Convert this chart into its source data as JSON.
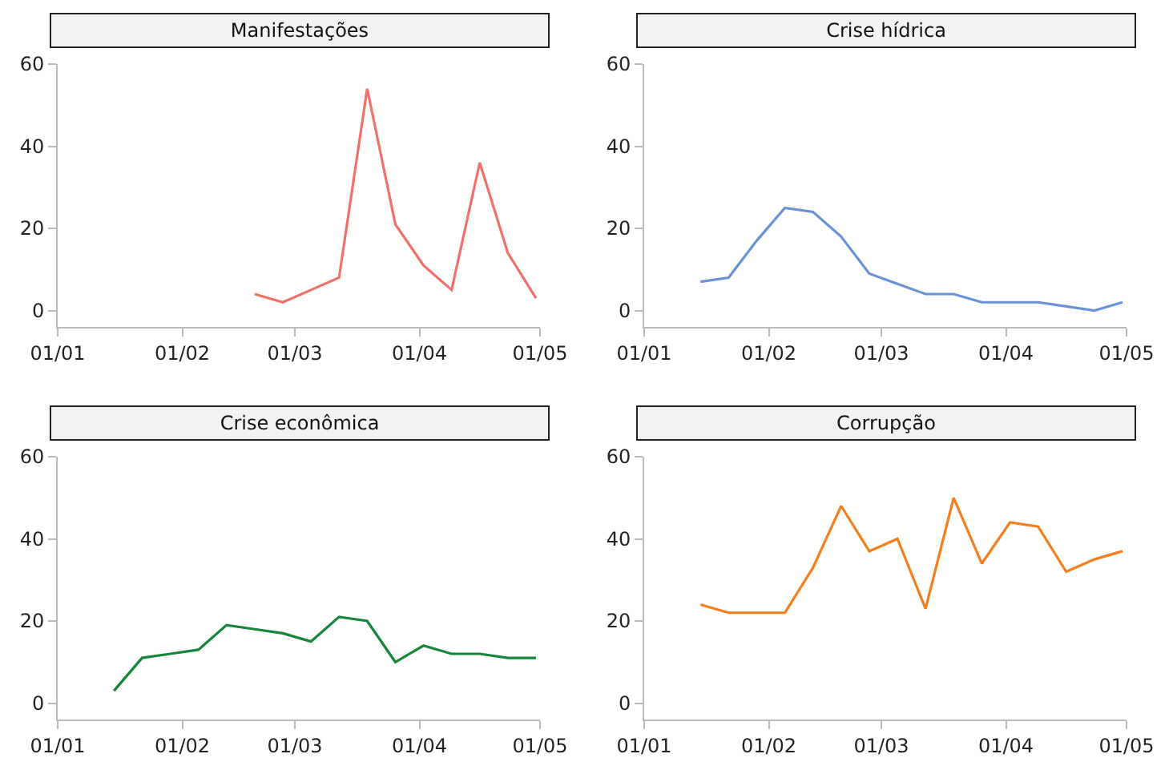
{
  "chart_data": [
    {
      "type": "line",
      "title": "Manifestações",
      "x": [
        "--02-19",
        "--02-26",
        "--03-05",
        "--03-12",
        "--03-19",
        "--03-26",
        "--04-02",
        "--04-09",
        "--04-16",
        "--04-23",
        "--04-30"
      ],
      "series": [
        {
          "color": "#f0716a",
          "values": [
            4,
            2,
            5,
            8,
            54,
            21,
            11,
            5,
            36,
            14,
            3
          ]
        }
      ],
      "xlim": [
        "--01-01",
        "--05-01"
      ],
      "xticks": [
        {
          "value": "--01-01",
          "label": "01/01"
        },
        {
          "value": "--02-01",
          "label": "01/02"
        },
        {
          "value": "--03-01",
          "label": "01/03"
        },
        {
          "value": "--04-01",
          "label": "01/04"
        },
        {
          "value": "--05-01",
          "label": "01/05"
        }
      ],
      "ylim": [
        -4,
        60
      ],
      "yticks": [
        0,
        20,
        40,
        60
      ]
    },
    {
      "type": "line",
      "title": "Crise hídrica",
      "x": [
        "--01-15",
        "--01-22",
        "--01-29",
        "--02-05",
        "--02-12",
        "--02-19",
        "--02-26",
        "--03-05",
        "--03-12",
        "--03-19",
        "--03-26",
        "--04-02",
        "--04-09",
        "--04-16",
        "--04-23",
        "--04-30"
      ],
      "series": [
        {
          "color": "#6a93d6",
          "values": [
            7,
            8,
            17,
            25,
            24,
            18,
            9,
            6.5,
            4,
            4,
            2,
            2,
            2,
            1,
            0,
            2
          ]
        }
      ],
      "xlim": [
        "--01-01",
        "--05-01"
      ],
      "xticks": [
        {
          "value": "--01-01",
          "label": "01/01"
        },
        {
          "value": "--02-01",
          "label": "01/02"
        },
        {
          "value": "--03-01",
          "label": "01/03"
        },
        {
          "value": "--04-01",
          "label": "01/04"
        },
        {
          "value": "--05-01",
          "label": "01/05"
        }
      ],
      "ylim": [
        -4,
        60
      ],
      "yticks": [
        0,
        20,
        40,
        60
      ]
    },
    {
      "type": "line",
      "title": "Crise econômica",
      "x": [
        "--01-15",
        "--01-22",
        "--01-29",
        "--02-05",
        "--02-12",
        "--02-19",
        "--02-26",
        "--03-05",
        "--03-12",
        "--03-19",
        "--03-26",
        "--04-02",
        "--04-09",
        "--04-16",
        "--04-23",
        "--04-30"
      ],
      "series": [
        {
          "color": "#15873a",
          "values": [
            3,
            11,
            12,
            13,
            19,
            18,
            17,
            15,
            21,
            20,
            10,
            14,
            12,
            12,
            11,
            11
          ]
        }
      ],
      "xlim": [
        "--01-01",
        "--05-01"
      ],
      "xticks": [
        {
          "value": "--01-01",
          "label": "01/01"
        },
        {
          "value": "--02-01",
          "label": "01/02"
        },
        {
          "value": "--03-01",
          "label": "01/03"
        },
        {
          "value": "--04-01",
          "label": "01/04"
        },
        {
          "value": "--05-01",
          "label": "01/05"
        }
      ],
      "ylim": [
        -4,
        60
      ],
      "yticks": [
        0,
        20,
        40,
        60
      ]
    },
    {
      "type": "line",
      "title": "Corrupção",
      "x": [
        "--01-15",
        "--01-22",
        "--01-29",
        "--02-05",
        "--02-12",
        "--02-19",
        "--02-26",
        "--03-05",
        "--03-12",
        "--03-19",
        "--03-26",
        "--04-02",
        "--04-09",
        "--04-16",
        "--04-23",
        "--04-30"
      ],
      "series": [
        {
          "color": "#f47f1e",
          "values": [
            24,
            22,
            22,
            22,
            33,
            48,
            37,
            40,
            23,
            50,
            34,
            44,
            43,
            32,
            35,
            37
          ]
        }
      ],
      "xlim": [
        "--01-01",
        "--05-01"
      ],
      "xticks": [
        {
          "value": "--01-01",
          "label": "01/01"
        },
        {
          "value": "--02-01",
          "label": "01/02"
        },
        {
          "value": "--03-01",
          "label": "01/03"
        },
        {
          "value": "--04-01",
          "label": "01/04"
        },
        {
          "value": "--05-01",
          "label": "01/05"
        }
      ],
      "ylim": [
        -4,
        60
      ],
      "yticks": [
        0,
        20,
        40,
        60
      ]
    }
  ]
}
